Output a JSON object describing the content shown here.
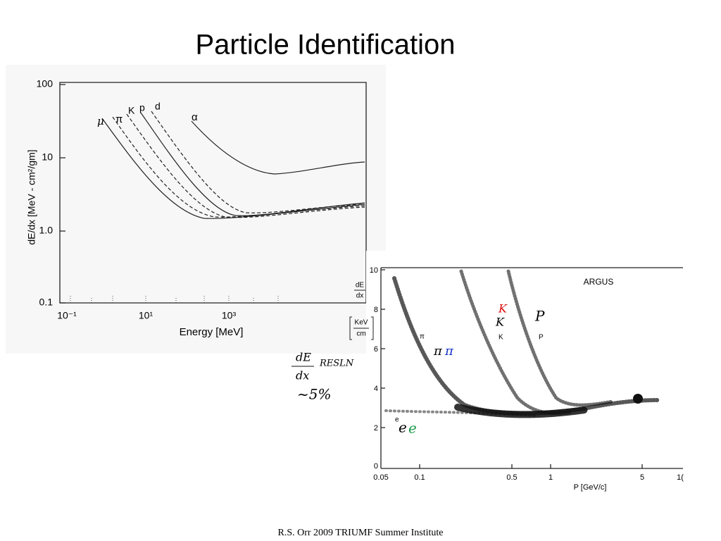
{
  "title": "Particle Identification",
  "footer": "R.S. Orr 2009 TRIUMF Summer Institute",
  "figure1": {
    "ylabel": "dE/dx  [MeV - cm²/gm]",
    "xlabel": "Energy  [MeV]",
    "yticks": [
      "100",
      "10",
      "1.0",
      "0.1"
    ],
    "xticks": [
      "10⁻¹",
      "10¹",
      "10³"
    ],
    "curve_labels": [
      "μ",
      "π",
      "K",
      "p",
      "d",
      "α"
    ]
  },
  "figure2": {
    "title": "ARGUS",
    "ylabel_num": "dE",
    "ylabel_den": "dx",
    "yunit_num": "KeV",
    "yunit_den": "cm",
    "xlabel": "P [GeV/c]",
    "yticks": [
      "10",
      "8",
      "6",
      "4",
      "2",
      "0"
    ],
    "xticks": [
      "0.05",
      "0.1",
      "0.5",
      "1",
      "5",
      "1("
    ],
    "band_labels": [
      "π",
      "K",
      "P",
      "e"
    ]
  },
  "annotations": {
    "kaon_red": "K",
    "kaon_black": "K",
    "proton": "P",
    "pion_black": "π",
    "pion_blue": "π",
    "electron_black": "e",
    "electron_green": "e",
    "resolution_num": "dE",
    "resolution_den": "dx",
    "resolution_word": "RESLN",
    "resolution_value": "~5%"
  }
}
